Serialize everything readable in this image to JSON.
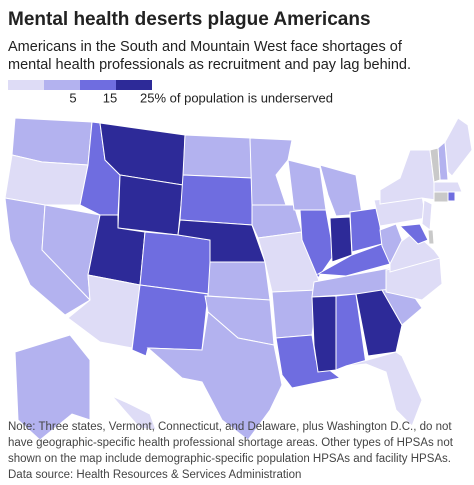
{
  "chart_data": {
    "type": "choropleth",
    "title": "Mental health deserts plague Americans",
    "subtitle": [
      "Americans in the South and Mountain West face shortages of",
      "mental health professionals as recruitment and pay lag behind."
    ],
    "legend_ticks": [
      {
        "value": 5,
        "label": "5"
      },
      {
        "value": 15,
        "label": "15"
      },
      {
        "value": 25,
        "label": "25% of population is underserved"
      }
    ],
    "colors": [
      "#dedcf6",
      "#b3b2ef",
      "#6f6de0",
      "#2d2a98"
    ],
    "no_data_color": "#c9c9c9",
    "values": [
      10,
      3,
      10,
      10,
      20,
      30,
      30,
      30,
      3,
      20,
      20,
      10,
      20,
      30,
      10,
      10,
      10,
      10,
      10,
      3,
      10,
      20,
      10,
      20,
      10,
      30,
      20,
      20,
      10,
      30,
      20,
      30,
      3,
      10,
      3,
      3,
      10,
      3,
      3,
      20,
      3,
      10,
      3,
      3,
      20,
      10,
      3
    ],
    "note": [
      "Note: Three states, Vermont, Connecticut, and Delaware, plus Washington D.C., do not",
      "have geographic-specific health professional shortage areas. Other types of HPSAs not",
      "shown on the map include demographic-specific population HPSAs and facility HPSAs."
    ],
    "source": "Data source: Health Resources & Services Administration"
  }
}
